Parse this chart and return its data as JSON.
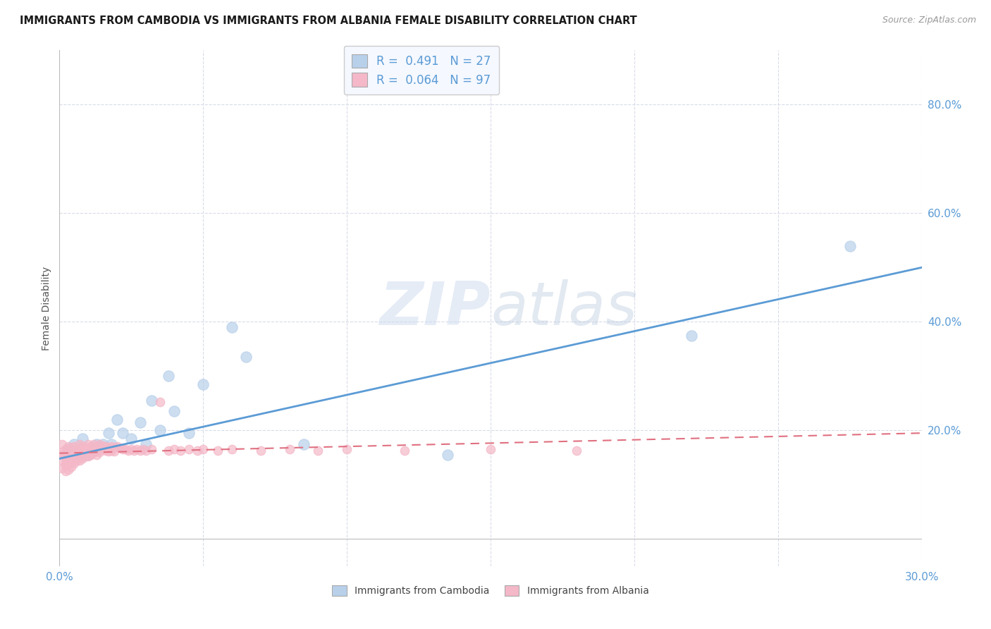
{
  "title": "IMMIGRANTS FROM CAMBODIA VS IMMIGRANTS FROM ALBANIA FEMALE DISABILITY CORRELATION CHART",
  "source": "Source: ZipAtlas.com",
  "ylabel": "Female Disability",
  "xlim": [
    0.0,
    0.3
  ],
  "ylim": [
    -0.05,
    0.9
  ],
  "ytick_positions": [
    0.2,
    0.4,
    0.6,
    0.8
  ],
  "ytick_labels": [
    "20.0%",
    "40.0%",
    "60.0%",
    "80.0%"
  ],
  "xtick_positions": [
    0.0,
    0.05,
    0.1,
    0.15,
    0.2,
    0.25,
    0.3
  ],
  "xtick_labels": [
    "0.0%",
    "",
    "",
    "",
    "",
    "",
    "30.0%"
  ],
  "cambodia_R": 0.491,
  "cambodia_N": 27,
  "albania_R": 0.064,
  "albania_N": 97,
  "cambodia_color": "#b8d0ea",
  "albania_color": "#f4b8c8",
  "cambodia_line_color": "#5b9bd5",
  "albania_line_color": "#e07080",
  "grid_color": "#d8dce8",
  "watermark_color": "#ccdaee",
  "cambodia_x": [
    0.003,
    0.005,
    0.007,
    0.008,
    0.01,
    0.012,
    0.013,
    0.015,
    0.017,
    0.018,
    0.02,
    0.022,
    0.025,
    0.028,
    0.03,
    0.032,
    0.035,
    0.038,
    0.04,
    0.045,
    0.05,
    0.06,
    0.065,
    0.085,
    0.135,
    0.22,
    0.275
  ],
  "cambodia_y": [
    0.165,
    0.175,
    0.155,
    0.185,
    0.155,
    0.165,
    0.175,
    0.175,
    0.195,
    0.175,
    0.22,
    0.195,
    0.185,
    0.215,
    0.175,
    0.255,
    0.2,
    0.3,
    0.235,
    0.195,
    0.285,
    0.39,
    0.335,
    0.175,
    0.155,
    0.375,
    0.54
  ],
  "albania_x": [
    0.001,
    0.001,
    0.001,
    0.001,
    0.001,
    0.002,
    0.002,
    0.002,
    0.002,
    0.002,
    0.002,
    0.003,
    0.003,
    0.003,
    0.003,
    0.003,
    0.003,
    0.004,
    0.004,
    0.004,
    0.004,
    0.004,
    0.005,
    0.005,
    0.005,
    0.005,
    0.005,
    0.006,
    0.006,
    0.006,
    0.006,
    0.007,
    0.007,
    0.007,
    0.007,
    0.007,
    0.008,
    0.008,
    0.008,
    0.008,
    0.009,
    0.009,
    0.009,
    0.01,
    0.01,
    0.01,
    0.01,
    0.011,
    0.011,
    0.011,
    0.012,
    0.012,
    0.012,
    0.013,
    0.013,
    0.013,
    0.014,
    0.014,
    0.014,
    0.015,
    0.015,
    0.016,
    0.016,
    0.017,
    0.017,
    0.018,
    0.018,
    0.019,
    0.019,
    0.02,
    0.021,
    0.022,
    0.023,
    0.024,
    0.025,
    0.026,
    0.027,
    0.028,
    0.029,
    0.03,
    0.032,
    0.035,
    0.038,
    0.04,
    0.042,
    0.045,
    0.048,
    0.05,
    0.055,
    0.06,
    0.07,
    0.08,
    0.09,
    0.1,
    0.12,
    0.15,
    0.18
  ],
  "albania_y": [
    0.175,
    0.16,
    0.155,
    0.145,
    0.13,
    0.165,
    0.155,
    0.148,
    0.14,
    0.135,
    0.125,
    0.17,
    0.16,
    0.152,
    0.145,
    0.138,
    0.128,
    0.168,
    0.158,
    0.15,
    0.143,
    0.133,
    0.17,
    0.162,
    0.155,
    0.148,
    0.14,
    0.167,
    0.16,
    0.152,
    0.145,
    0.175,
    0.168,
    0.16,
    0.152,
    0.145,
    0.17,
    0.162,
    0.155,
    0.148,
    0.168,
    0.16,
    0.152,
    0.175,
    0.168,
    0.16,
    0.152,
    0.17,
    0.162,
    0.155,
    0.175,
    0.168,
    0.16,
    0.17,
    0.162,
    0.155,
    0.175,
    0.168,
    0.16,
    0.172,
    0.165,
    0.17,
    0.163,
    0.168,
    0.162,
    0.17,
    0.163,
    0.168,
    0.162,
    0.17,
    0.168,
    0.165,
    0.165,
    0.163,
    0.165,
    0.163,
    0.165,
    0.163,
    0.165,
    0.163,
    0.165,
    0.253,
    0.163,
    0.165,
    0.163,
    0.165,
    0.163,
    0.165,
    0.163,
    0.165,
    0.163,
    0.165,
    0.163,
    0.165,
    0.163,
    0.165,
    0.163
  ]
}
